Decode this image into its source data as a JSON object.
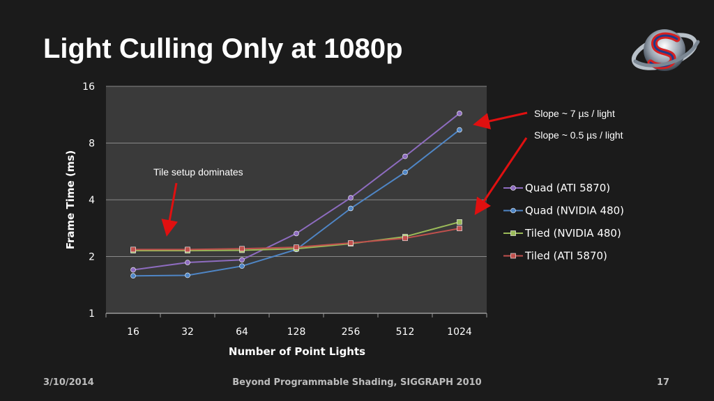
{
  "slide": {
    "title": "Light Culling Only at 1080p",
    "footer_date": "3/10/2014",
    "footer_center": "Beyond Programmable Shading, SIGGRAPH 2010",
    "page_number": "17"
  },
  "colors": {
    "background": "#1b1b1b",
    "plot_area": "#3a3a3a",
    "gridline": "#8a8a8a",
    "annotation_arrow": "#e01010"
  },
  "chart_data": {
    "type": "line",
    "title": "",
    "xlabel": "Number of Point Lights",
    "ylabel": "Frame Time (ms)",
    "y_scale": "log2",
    "ylim": [
      1,
      16
    ],
    "y_ticks": [
      1,
      2,
      4,
      8,
      16
    ],
    "categories": [
      "16",
      "32",
      "64",
      "128",
      "256",
      "512",
      "1024"
    ],
    "grid": true,
    "legend_position": "right",
    "series": [
      {
        "name": "Quad (ATI 5870)",
        "color": "#8e6cc0",
        "marker": "circle",
        "values": [
          1.7,
          1.86,
          1.92,
          2.65,
          4.1,
          6.8,
          11.5
        ]
      },
      {
        "name": "Quad (NVIDIA 480)",
        "color": "#4f86c6",
        "marker": "circle",
        "values": [
          1.58,
          1.59,
          1.78,
          2.18,
          3.6,
          5.6,
          9.4
        ]
      },
      {
        "name": "Tiled (NVIDIA 480)",
        "color": "#9bbb59",
        "marker": "square",
        "values": [
          2.15,
          2.15,
          2.16,
          2.2,
          2.34,
          2.55,
          3.05
        ]
      },
      {
        "name": "Tiled (ATI 5870)",
        "color": "#c0504d",
        "marker": "square",
        "values": [
          2.18,
          2.18,
          2.2,
          2.24,
          2.36,
          2.5,
          2.82
        ]
      }
    ],
    "annotations": [
      {
        "text": "Slope ~ 7 µs / light"
      },
      {
        "text": "Slope ~ 0.5 µs / light"
      },
      {
        "text": "Tile setup dominates"
      }
    ]
  }
}
